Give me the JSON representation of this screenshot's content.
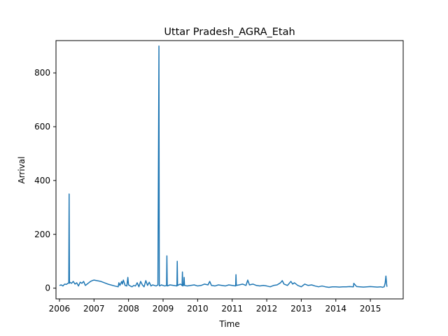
{
  "chart_data": {
    "type": "line",
    "title": "Uttar Pradesh_AGRA_Etah",
    "xlabel": "Time",
    "ylabel": "Arrival",
    "xlim": [
      2005.9,
      2015.95
    ],
    "ylim": [
      -40,
      920
    ],
    "x_ticks": [
      2006,
      2007,
      2008,
      2009,
      2010,
      2011,
      2012,
      2013,
      2014,
      2015
    ],
    "x_tick_labels": [
      "2006",
      "2007",
      "2008",
      "2009",
      "2010",
      "2011",
      "2012",
      "2013",
      "2014",
      "2015"
    ],
    "y_ticks": [
      0,
      200,
      400,
      600,
      800
    ],
    "y_tick_labels": [
      "0",
      "200",
      "400",
      "600",
      "800"
    ],
    "grid": false,
    "line_color": "#1f77b4",
    "series": [
      {
        "x": [
          2006.0,
          2006.05,
          2006.1,
          2006.15,
          2006.2,
          2006.27,
          2006.28,
          2006.29,
          2006.3,
          2006.35,
          2006.4,
          2006.45,
          2006.5,
          2006.55,
          2006.6,
          2006.65,
          2006.7,
          2006.75,
          2006.8,
          2006.85,
          2006.9,
          2006.95,
          2007.0,
          2007.2,
          2007.4,
          2007.6,
          2007.7,
          2007.72,
          2007.75,
          2007.8,
          2007.82,
          2007.85,
          2007.9,
          2007.95,
          2007.98,
          2008.0,
          2008.05,
          2008.1,
          2008.15,
          2008.2,
          2008.25,
          2008.3,
          2008.35,
          2008.4,
          2008.45,
          2008.5,
          2008.55,
          2008.6,
          2008.65,
          2008.7,
          2008.75,
          2008.8,
          2008.85,
          2008.88,
          2008.89,
          2008.9,
          2008.95,
          2009.0,
          2009.05,
          2009.1,
          2009.11,
          2009.12,
          2009.2,
          2009.3,
          2009.4,
          2009.41,
          2009.42,
          2009.5,
          2009.55,
          2009.56,
          2009.57,
          2009.6,
          2009.61,
          2009.62,
          2009.7,
          2009.8,
          2009.9,
          2010.0,
          2010.1,
          2010.2,
          2010.3,
          2010.35,
          2010.4,
          2010.5,
          2010.6,
          2010.7,
          2010.8,
          2010.9,
          2011.0,
          2011.1,
          2011.11,
          2011.12,
          2011.2,
          2011.3,
          2011.4,
          2011.45,
          2011.5,
          2011.6,
          2011.7,
          2011.8,
          2011.9,
          2012.0,
          2012.1,
          2012.2,
          2012.3,
          2012.4,
          2012.45,
          2012.5,
          2012.6,
          2012.7,
          2012.75,
          2012.8,
          2012.9,
          2013.0,
          2013.1,
          2013.2,
          2013.3,
          2013.4,
          2013.5,
          2013.6,
          2013.7,
          2013.8,
          2013.9,
          2014.0,
          2014.1,
          2014.2,
          2014.3,
          2014.4,
          2014.5,
          2014.51,
          2014.52,
          2014.6,
          2014.7,
          2014.8,
          2014.9,
          2015.0,
          2015.1,
          2015.2,
          2015.3,
          2015.35,
          2015.4,
          2015.43,
          2015.45,
          2015.47,
          2015.48
        ],
        "y": [
          10,
          12,
          8,
          15,
          14,
          20,
          350,
          18,
          22,
          18,
          25,
          15,
          20,
          8,
          22,
          18,
          25,
          10,
          15,
          20,
          25,
          28,
          30,
          25,
          15,
          8,
          5,
          20,
          10,
          25,
          15,
          30,
          10,
          8,
          40,
          12,
          8,
          5,
          10,
          8,
          20,
          5,
          25,
          12,
          5,
          28,
          10,
          22,
          8,
          12,
          10,
          8,
          12,
          900,
          10,
          8,
          12,
          10,
          8,
          10,
          120,
          8,
          12,
          10,
          8,
          100,
          10,
          15,
          10,
          60,
          8,
          12,
          40,
          10,
          8,
          10,
          12,
          8,
          10,
          15,
          12,
          25,
          10,
          8,
          12,
          10,
          8,
          12,
          10,
          8,
          50,
          10,
          12,
          15,
          10,
          30,
          12,
          15,
          10,
          8,
          10,
          8,
          5,
          10,
          12,
          20,
          28,
          15,
          10,
          25,
          15,
          20,
          10,
          5,
          15,
          10,
          12,
          8,
          5,
          8,
          5,
          3,
          5,
          5,
          4,
          5,
          5,
          6,
          5,
          5,
          18,
          6,
          5,
          4,
          5,
          6,
          5,
          4,
          5,
          3,
          5,
          20,
          45,
          15,
          5
        ]
      }
    ]
  }
}
